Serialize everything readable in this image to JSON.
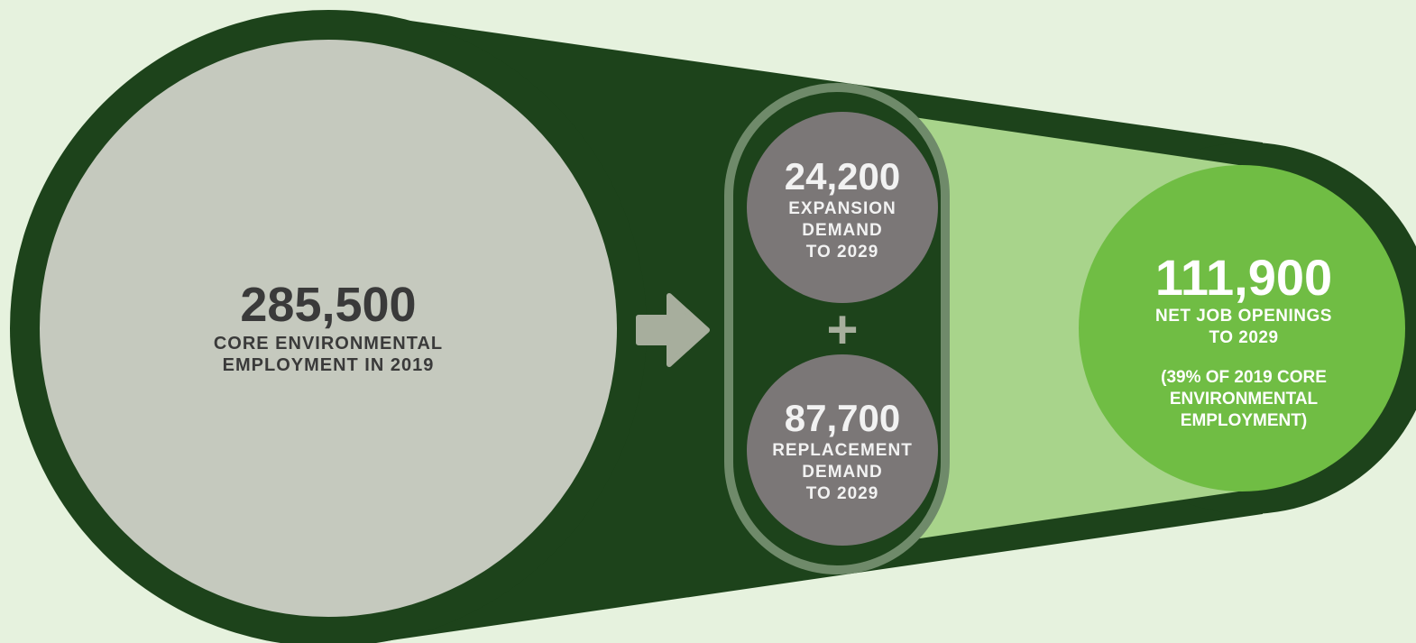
{
  "colors": {
    "background": "#e6f2de",
    "dark_green": "#1d431b",
    "light_green": "#a8d48b",
    "bright_green": "#70bd44",
    "core_circle": "#c5c9be",
    "demand_circle": "#7b7777",
    "arrow": "#a7ae9d"
  },
  "core": {
    "value": "285,500",
    "caption": "CORE ENVIRONMENTAL\nEMPLOYMENT IN 2019"
  },
  "expansion": {
    "value": "24,200",
    "caption": "EXPANSION\nDEMAND\nTO 2029"
  },
  "operator": "+",
  "replacement": {
    "value": "87,700",
    "caption": "REPLACEMENT\nDEMAND\nTO 2029"
  },
  "net": {
    "value": "111,900",
    "caption": "NET JOB OPENINGS\nTO 2029",
    "note": "(39% OF 2019 CORE\nENVIRONMENTAL\nEMPLOYMENT)"
  },
  "icons": {
    "arrow": "right-arrow-icon"
  }
}
